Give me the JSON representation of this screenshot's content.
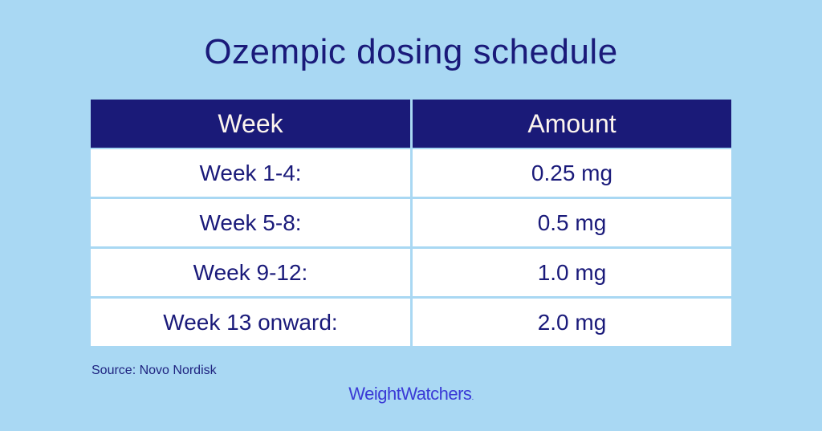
{
  "title": "Ozempic dosing schedule",
  "table": {
    "headers": [
      "Week",
      "Amount"
    ],
    "rows": [
      {
        "week": "Week 1-4:",
        "amount": "0.25 mg"
      },
      {
        "week": "Week 5-8:",
        "amount": "0.5 mg"
      },
      {
        "week": "Week 9-12:",
        "amount": "1.0 mg"
      },
      {
        "week": "Week 13 onward:",
        "amount": "2.0 mg"
      }
    ]
  },
  "source": "Source: Novo Nordisk",
  "brand": {
    "name": "WeightWatchers",
    "mark": "."
  },
  "colors": {
    "background": "#a9d8f3",
    "header": "#1a1a78",
    "text": "#1a1a7a",
    "brand": "#3a3ad6"
  }
}
